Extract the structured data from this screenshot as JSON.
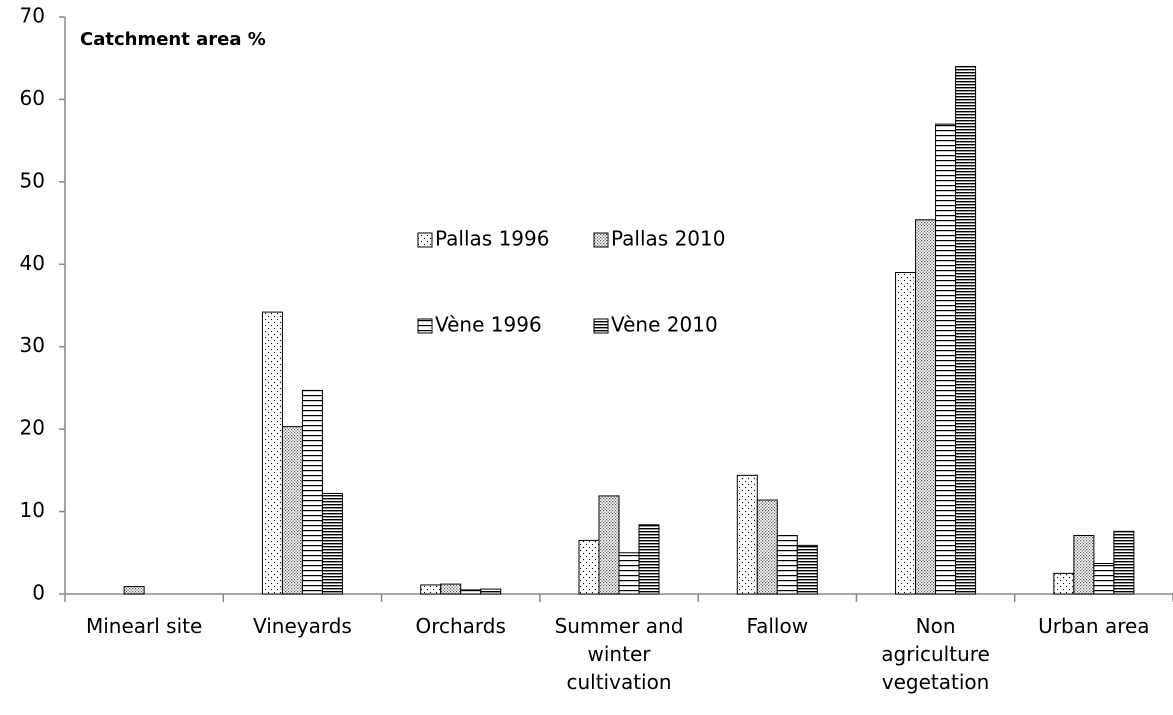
{
  "chart_data": {
    "type": "bar",
    "title": "Catchment area %",
    "categories": [
      "Minearl site",
      "Vineyards",
      "Orchards",
      "Summer and winter cultivation",
      "Fallow",
      "Non agriculture vegetation",
      "Urban area"
    ],
    "series": [
      {
        "name": "Pallas 1996",
        "color": "#000000",
        "pattern": "dots",
        "values": [
          0,
          34.2,
          1.1,
          6.5,
          14.4,
          39,
          2.5
        ]
      },
      {
        "name": "Pallas 2010",
        "color": "#000000",
        "pattern": "dense-dots",
        "values": [
          0.9,
          20.3,
          1.2,
          11.9,
          11.4,
          45.4,
          7.1
        ]
      },
      {
        "name": "Vène 1996",
        "color": "#000000",
        "pattern": "horizontal-lines",
        "values": [
          0,
          24.7,
          0.5,
          5.0,
          7.1,
          57,
          3.7
        ]
      },
      {
        "name": "Vène 2010",
        "color": "#000000",
        "pattern": "dense-horizontal-lines",
        "values": [
          0,
          12.2,
          0.6,
          8.4,
          5.9,
          64,
          7.6
        ]
      }
    ],
    "ylim": [
      0,
      70
    ],
    "yticks": [
      0,
      10,
      20,
      30,
      40,
      50,
      60,
      70
    ],
    "grid": false
  }
}
